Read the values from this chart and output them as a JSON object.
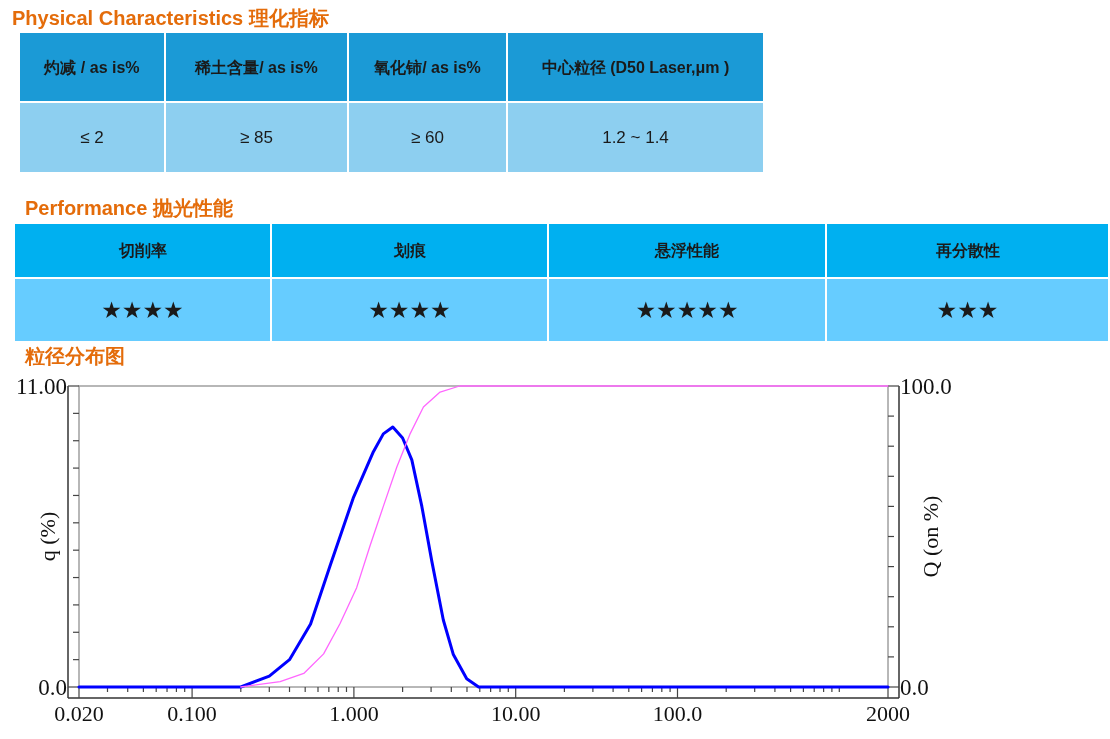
{
  "chart_data": [
    {
      "type": "other",
      "title": "Physical Characteristics 理化指标",
      "categories": [
        "灼减 / as is%",
        "稀土含量/ as is%",
        "氧化铈/ as is%",
        "中心粒径 (D50 Laser,μm )"
      ],
      "annotations": [
        "≤ 2",
        "≥ 85",
        "≥ 60",
        "1.2 ~ 1.4"
      ]
    },
    {
      "type": "other",
      "title": "Performance 抛光性能",
      "categories": [
        "切削率",
        "划痕",
        "悬浮性能",
        "再分散性"
      ],
      "annotations": [
        "★★★★",
        "★★★★",
        "★★★★★",
        "★★★"
      ]
    },
    {
      "type": "line",
      "title": "粒径分布图",
      "ylabel": "q (%)",
      "y2label": "Q (on %)",
      "log": "x",
      "xlim": [
        0.02,
        2000
      ],
      "xticks": [
        {
          "value": 0.02,
          "label": "0.020"
        },
        {
          "value": 0.03,
          "label": null
        },
        {
          "value": 0.04,
          "label": null
        },
        {
          "value": 0.05,
          "label": null
        },
        {
          "value": 0.06,
          "label": null
        },
        {
          "value": 0.07,
          "label": null
        },
        {
          "value": 0.08,
          "label": null
        },
        {
          "value": 0.09,
          "label": null
        },
        {
          "value": 0.1,
          "label": "0.100"
        },
        {
          "value": 0.2,
          "label": null
        },
        {
          "value": 0.3,
          "label": null
        },
        {
          "value": 0.4,
          "label": null
        },
        {
          "value": 0.5,
          "label": null
        },
        {
          "value": 0.6,
          "label": null
        },
        {
          "value": 0.7,
          "label": null
        },
        {
          "value": 0.8,
          "label": null
        },
        {
          "value": 0.9,
          "label": null
        },
        {
          "value": 1,
          "label": "1.000"
        },
        {
          "value": 2,
          "label": null
        },
        {
          "value": 3,
          "label": null
        },
        {
          "value": 4,
          "label": null
        },
        {
          "value": 5,
          "label": null
        },
        {
          "value": 6,
          "label": null
        },
        {
          "value": 7,
          "label": null
        },
        {
          "value": 8,
          "label": null
        },
        {
          "value": 9,
          "label": null
        },
        {
          "value": 10,
          "label": "10.00"
        },
        {
          "value": 20,
          "label": null
        },
        {
          "value": 30,
          "label": null
        },
        {
          "value": 40,
          "label": null
        },
        {
          "value": 50,
          "label": null
        },
        {
          "value": 60,
          "label": null
        },
        {
          "value": 70,
          "label": null
        },
        {
          "value": 80,
          "label": null
        },
        {
          "value": 90,
          "label": null
        },
        {
          "value": 100,
          "label": "100.0"
        },
        {
          "value": 200,
          "label": null
        },
        {
          "value": 300,
          "label": null
        },
        {
          "value": 400,
          "label": null
        },
        {
          "value": 500,
          "label": null
        },
        {
          "value": 600,
          "label": null
        },
        {
          "value": 700,
          "label": null
        },
        {
          "value": 800,
          "label": null
        },
        {
          "value": 900,
          "label": null
        },
        {
          "value": 1000,
          "label": null
        },
        {
          "value": 2000,
          "label": "2000"
        }
      ],
      "ylim": [
        0,
        11
      ],
      "yticks": [
        {
          "value": 0,
          "label": "0.0"
        },
        {
          "value": 1,
          "label": null
        },
        {
          "value": 2,
          "label": null
        },
        {
          "value": 3,
          "label": null
        },
        {
          "value": 4,
          "label": null
        },
        {
          "value": 5,
          "label": null
        },
        {
          "value": 6,
          "label": null
        },
        {
          "value": 7,
          "label": null
        },
        {
          "value": 8,
          "label": null
        },
        {
          "value": 9,
          "label": null
        },
        {
          "value": 10,
          "label": null
        },
        {
          "value": 11,
          "label": "11.00"
        }
      ],
      "y2lim": [
        0,
        100
      ],
      "y2ticks": [
        {
          "value": 0,
          "label": "0.0"
        },
        {
          "value": 10,
          "label": null
        },
        {
          "value": 20,
          "label": null
        },
        {
          "value": 30,
          "label": null
        },
        {
          "value": 40,
          "label": null
        },
        {
          "value": 50,
          "label": null
        },
        {
          "value": 60,
          "label": null
        },
        {
          "value": 70,
          "label": null
        },
        {
          "value": 80,
          "label": null
        },
        {
          "value": 90,
          "label": null
        },
        {
          "value": 100,
          "label": "100.0"
        }
      ],
      "series": [
        {
          "color": "#0000ff",
          "x": [
            0.02,
            0.2,
            0.3,
            0.4,
            0.54,
            0.71,
            0.99,
            1.32,
            1.52,
            1.74,
            2.0,
            2.28,
            2.63,
            3.03,
            3.57,
            4.11,
            4.98,
            5.9,
            2000
          ],
          "values": [
            0,
            0,
            0.4,
            1.0,
            2.3,
            4.4,
            6.9,
            8.6,
            9.25,
            9.5,
            9.1,
            8.3,
            6.6,
            4.6,
            2.45,
            1.2,
            0.3,
            0,
            0
          ]
        },
        {
          "color": "#ff66ff",
          "axis": "y2",
          "x": [
            0.2,
            0.35,
            0.49,
            0.65,
            0.82,
            1.04,
            1.26,
            1.52,
            1.84,
            2.22,
            2.69,
            3.41,
            4.5,
            2000
          ],
          "values": [
            0,
            1.8,
            4.5,
            11,
            21,
            33,
            47,
            60,
            73,
            84,
            93,
            98,
            100,
            100
          ]
        }
      ]
    }
  ]
}
